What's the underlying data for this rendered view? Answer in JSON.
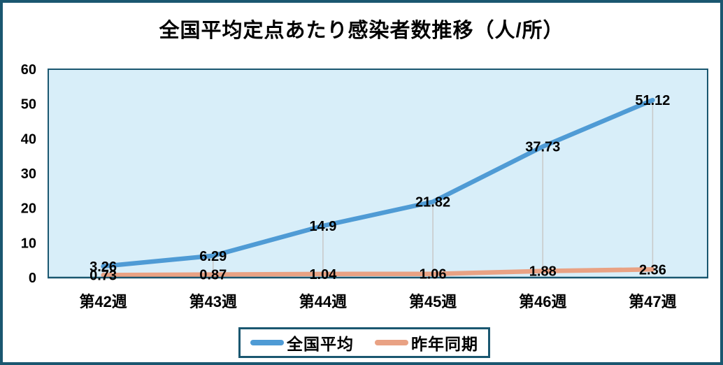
{
  "title": "全国平均定点あたり感染者数推移（人/所）",
  "colors": {
    "frame": "#1A5770",
    "plot_bg": "#D8EEF9",
    "dropline": "#C8C8C8",
    "text": "#000000",
    "background": "#FFFFFF"
  },
  "chart_data": {
    "type": "line",
    "title": "全国平均定点あたり感染者数推移（人/所）",
    "categories": [
      "第42週",
      "第43週",
      "第44週",
      "第45週",
      "第46週",
      "第47週"
    ],
    "series": [
      {
        "name": "全国平均",
        "color": "#4F9BD5",
        "values": [
          3.26,
          6.29,
          14.9,
          21.82,
          37.73,
          51.12
        ]
      },
      {
        "name": "昨年同期",
        "color": "#E9A284",
        "values": [
          0.73,
          0.87,
          1.04,
          1.06,
          1.88,
          2.36
        ]
      }
    ],
    "xlabel": "",
    "ylabel": "",
    "ylim": [
      0,
      60
    ],
    "yticks": [
      0,
      10,
      20,
      30,
      40,
      50,
      60
    ],
    "grid": "vertical-droplines-only",
    "data_labels": "shown-centered-on-points",
    "legend_position": "bottom"
  }
}
